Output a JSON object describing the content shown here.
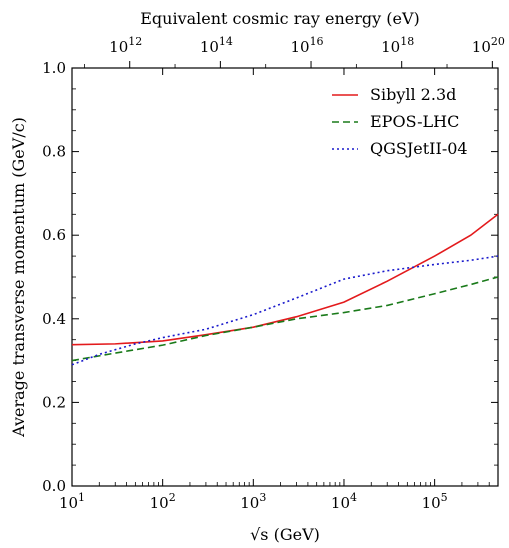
{
  "chart_data": {
    "type": "line",
    "xlabel": "√s (GeV)",
    "ylabel": "Average transverse momentum (GeV/c)",
    "top_xlabel": "Equivalent cosmic ray energy (eV)",
    "x_scale": "log",
    "xlim": [
      10,
      500000
    ],
    "ylim": [
      0.0,
      1.0
    ],
    "grid": false,
    "legend_position": "top-right",
    "x_ticks": [
      {
        "value": 10,
        "base": "10",
        "exp": "1"
      },
      {
        "value": 100,
        "base": "10",
        "exp": "2"
      },
      {
        "value": 1000,
        "base": "10",
        "exp": "3"
      },
      {
        "value": 10000,
        "base": "10",
        "exp": "4"
      },
      {
        "value": 100000,
        "base": "10",
        "exp": "5"
      }
    ],
    "y_ticks": [
      {
        "value": 0.0,
        "label": "0.0"
      },
      {
        "value": 0.2,
        "label": "0.2"
      },
      {
        "value": 0.4,
        "label": "0.4"
      },
      {
        "value": 0.6,
        "label": "0.6"
      },
      {
        "value": 0.8,
        "label": "0.8"
      },
      {
        "value": 1.0,
        "label": "1.0"
      }
    ],
    "top_ticks": [
      {
        "energy_ev": 1000000000000.0,
        "base": "10",
        "exp": "12"
      },
      {
        "energy_ev": 100000000000000.0,
        "base": "10",
        "exp": "14"
      },
      {
        "energy_ev": 1e+16,
        "base": "10",
        "exp": "16"
      },
      {
        "energy_ev": 1e+18,
        "base": "10",
        "exp": "18"
      },
      {
        "energy_ev": 1e+20,
        "base": "10",
        "exp": "20"
      }
    ],
    "series": [
      {
        "name": "Sibyll 2.3d",
        "color": "#e31a1c",
        "dash": "solid",
        "x": [
          10,
          30,
          100,
          300,
          1000,
          3000,
          10000,
          30000,
          100000,
          250000,
          500000
        ],
        "y": [
          0.338,
          0.34,
          0.347,
          0.362,
          0.38,
          0.405,
          0.44,
          0.49,
          0.55,
          0.6,
          0.65
        ]
      },
      {
        "name": "EPOS-LHC",
        "color": "#1a7a1a",
        "dash": "dashed",
        "x": [
          10,
          30,
          100,
          300,
          1000,
          3000,
          10000,
          30000,
          100000,
          250000,
          500000
        ],
        "y": [
          0.3,
          0.318,
          0.337,
          0.36,
          0.38,
          0.4,
          0.415,
          0.432,
          0.46,
          0.482,
          0.5
        ]
      },
      {
        "name": "QGSJetII-04",
        "color": "#1a1acc",
        "dash": "dotted",
        "x": [
          10,
          20,
          50,
          100,
          300,
          1000,
          3000,
          10000,
          30000,
          100000,
          250000,
          500000
        ],
        "y": [
          0.29,
          0.315,
          0.34,
          0.355,
          0.375,
          0.41,
          0.45,
          0.495,
          0.515,
          0.53,
          0.54,
          0.55
        ]
      }
    ]
  }
}
